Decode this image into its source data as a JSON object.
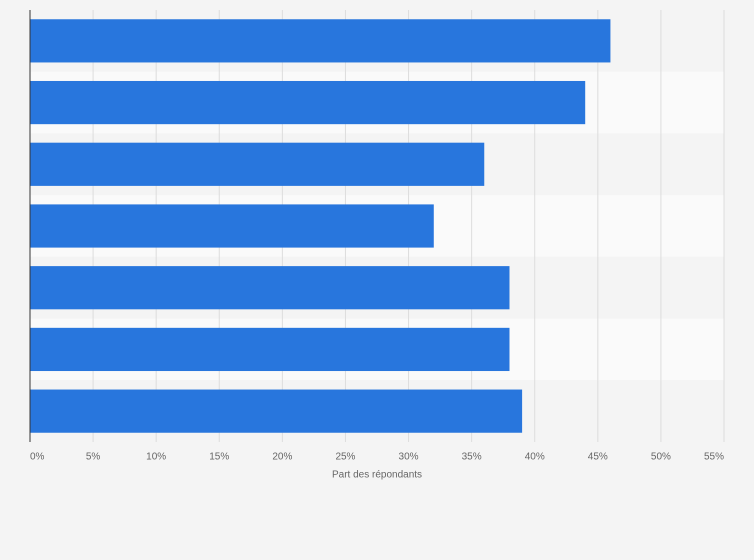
{
  "chart_data": {
    "type": "bar",
    "orientation": "horizontal",
    "x_label": "Part des répondants",
    "categories": [
      null,
      null,
      null,
      null,
      null,
      null,
      null
    ],
    "values": [
      46,
      44,
      36,
      32,
      38,
      38,
      39
    ],
    "color": "#2876dd",
    "xlim": [
      0,
      55
    ],
    "xticks": [
      {
        "value": 0,
        "label": "0%"
      },
      {
        "value": 5,
        "label": "5%"
      },
      {
        "value": 10,
        "label": "10%"
      },
      {
        "value": 15,
        "label": "15%"
      },
      {
        "value": 20,
        "label": "20%"
      },
      {
        "value": 25,
        "label": "25%"
      },
      {
        "value": 30,
        "label": "30%"
      },
      {
        "value": 35,
        "label": "35%"
      },
      {
        "value": 40,
        "label": "40%"
      },
      {
        "value": 45,
        "label": "45%"
      },
      {
        "value": 50,
        "label": "50%"
      },
      {
        "value": 55,
        "label": "55%"
      }
    ],
    "grid": true
  }
}
